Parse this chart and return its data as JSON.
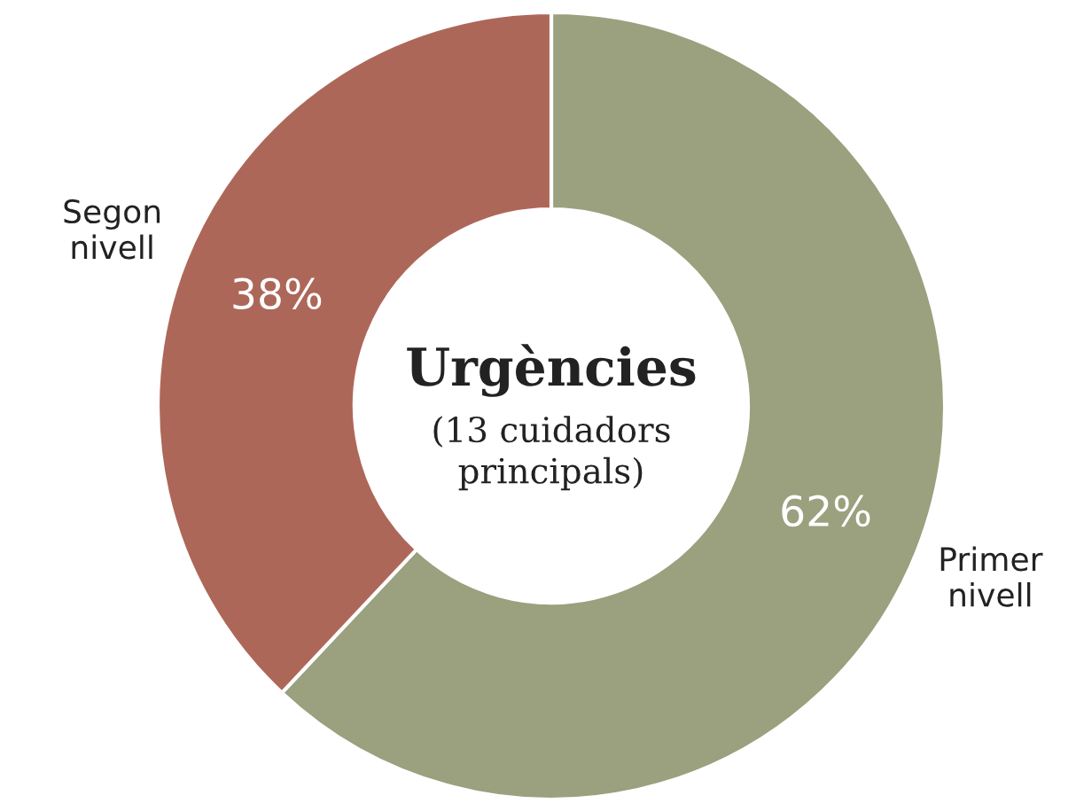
{
  "chart_data": {
    "type": "donut",
    "title": "Urgències",
    "subtitle": "(13 cuidadors\nprincipals)",
    "categories": [
      "Primer\nnivell",
      "Segon\nnivell"
    ],
    "values": [
      62,
      38
    ],
    "colors": [
      "#9ba07e",
      "#ad6759"
    ],
    "value_labels": [
      "62%",
      "38%"
    ],
    "legend": false
  }
}
